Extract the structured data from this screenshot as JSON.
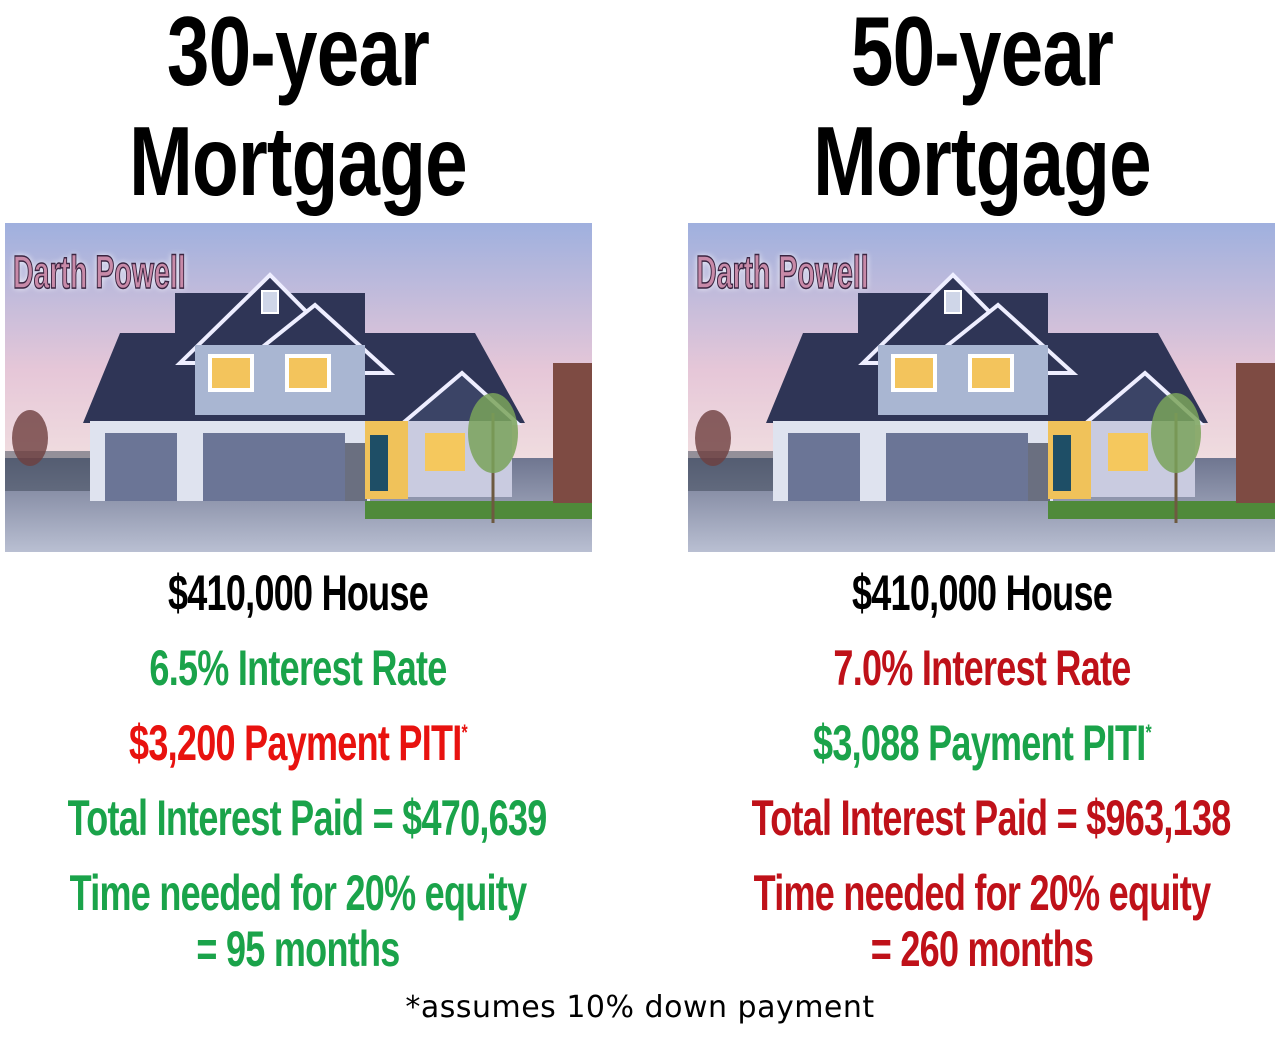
{
  "left": {
    "title_line1": "30-year",
    "title_line2": "Mortgage",
    "watermark": "Darth Powell",
    "house_price": "$410,000 House",
    "interest_rate": "6.5% Interest Rate",
    "payment": "$3,200 Payment PITI",
    "payment_mark": "*",
    "total_interest": "Total Interest Paid = $470,639",
    "equity_line1": "Time needed for 20% equity",
    "equity_line2": "= 95 months"
  },
  "right": {
    "title_line1": "50-year",
    "title_line2": "Mortgage",
    "watermark": "Darth Powell",
    "house_price": "$410,000 House",
    "interest_rate": "7.0% Interest Rate",
    "payment": "$3,088 Payment PITI",
    "payment_mark": "*",
    "total_interest": "Total Interest Paid = $963,138",
    "equity_line1": "Time needed for 20% equity",
    "equity_line2": "= 260 months"
  },
  "footnote": "*assumes 10% down payment",
  "colors": {
    "good": "#1aa34a",
    "bad_left": "#e8120f",
    "bad_right": "#bf1119",
    "neutral": "#000000"
  }
}
